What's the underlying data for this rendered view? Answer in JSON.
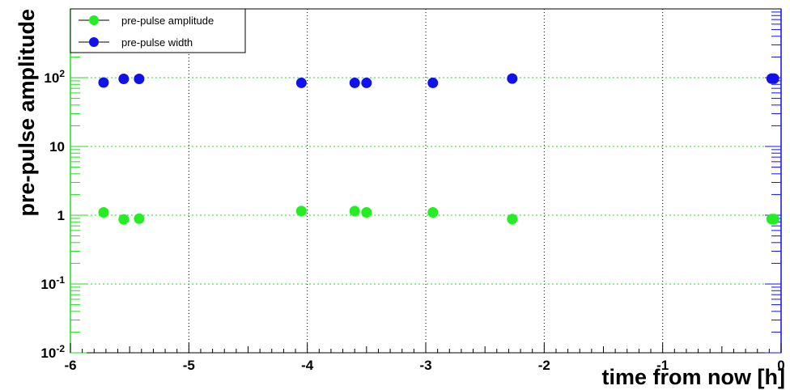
{
  "chart_data": {
    "type": "scatter",
    "title": "",
    "xlabel": "time from now [h]",
    "ylabel": "pre-pulse amplitude",
    "xlim": [
      -6,
      0
    ],
    "ylim": [
      0.01,
      1000
    ],
    "y_scale": "log",
    "x_ticks": [
      "-6",
      "-5",
      "-4",
      "-3",
      "-2",
      "-1",
      "0"
    ],
    "y_ticks": [
      {
        "value": 0.01,
        "base": "10",
        "exp": "-2"
      },
      {
        "value": 0.1,
        "base": "10",
        "exp": "-1"
      },
      {
        "value": 1,
        "base": "1",
        "exp": ""
      },
      {
        "value": 10,
        "base": "10",
        "exp": ""
      },
      {
        "value": 100,
        "base": "10",
        "exp": "2"
      }
    ],
    "grid": true,
    "legend_position": "top-left",
    "series": [
      {
        "name": "pre-pulse amplitude",
        "color": "#22ee22",
        "points": [
          {
            "x": -5.72,
            "y": 1.1
          },
          {
            "x": -5.55,
            "y": 0.87
          },
          {
            "x": -5.42,
            "y": 0.89
          },
          {
            "x": -4.05,
            "y": 1.15
          },
          {
            "x": -3.6,
            "y": 1.15
          },
          {
            "x": -3.5,
            "y": 1.1
          },
          {
            "x": -2.94,
            "y": 1.1
          },
          {
            "x": -2.27,
            "y": 0.88
          },
          {
            "x": -0.08,
            "y": 0.88
          },
          {
            "x": -0.06,
            "y": 0.88
          }
        ]
      },
      {
        "name": "pre-pulse width",
        "color": "#1111ee",
        "points": [
          {
            "x": -5.72,
            "y": 85
          },
          {
            "x": -5.55,
            "y": 96
          },
          {
            "x": -5.42,
            "y": 96
          },
          {
            "x": -4.05,
            "y": 84
          },
          {
            "x": -3.6,
            "y": 84
          },
          {
            "x": -3.5,
            "y": 84
          },
          {
            "x": -2.94,
            "y": 84
          },
          {
            "x": -2.27,
            "y": 97
          },
          {
            "x": -0.08,
            "y": 97
          },
          {
            "x": -0.06,
            "y": 97
          }
        ]
      }
    ]
  }
}
